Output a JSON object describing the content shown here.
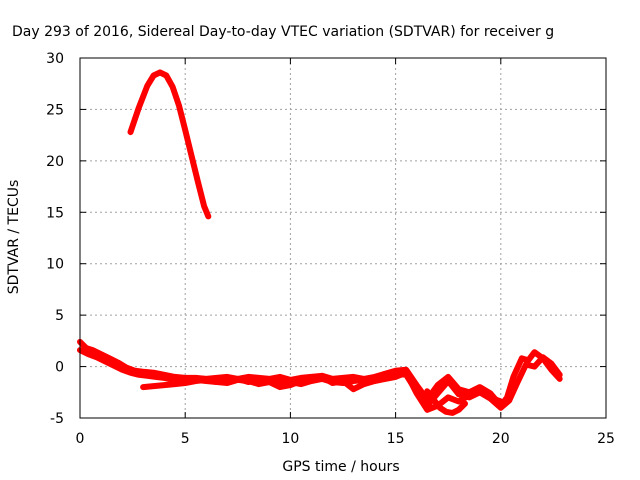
{
  "chart_data": {
    "type": "line",
    "title": "Day 293 of 2016, Sidereal Day-to-day VTEC variation (SDTVAR) for receiver g",
    "xlabel": "GPS time / hours",
    "ylabel": "SDTVAR / TECUs",
    "xlim": [
      0,
      25
    ],
    "ylim": [
      -5,
      30
    ],
    "xticks": [
      0,
      5,
      10,
      15,
      20,
      25
    ],
    "yticks": [
      -5,
      0,
      5,
      10,
      15,
      20,
      25,
      30
    ],
    "grid": true,
    "series_color": "#ff0000",
    "series": [
      {
        "x": [
          2.4,
          2.8,
          3.2,
          3.5,
          3.8,
          4.1,
          4.4,
          4.7,
          5.0,
          5.3,
          5.6,
          5.9,
          6.1
        ],
        "y": [
          22.8,
          25.2,
          27.3,
          28.3,
          28.6,
          28.3,
          27.2,
          25.4,
          23.0,
          20.5,
          18.0,
          15.6,
          14.6
        ]
      },
      {
        "x": [
          0.0,
          0.3,
          0.6,
          1.0,
          1.4,
          1.8,
          2.2,
          2.6,
          3.0,
          3.5,
          4.0,
          4.5,
          5.0,
          5.5,
          6.0,
          6.5,
          7.0,
          7.5,
          8.0,
          8.5,
          9.0,
          9.5,
          10.0,
          10.5,
          11.0,
          11.5,
          12.0,
          12.5,
          13.0,
          13.5,
          14.0,
          14.5,
          15.0,
          15.5,
          16.0,
          16.5,
          17.0,
          17.5,
          18.0,
          18.5,
          19.0,
          19.5,
          20.0,
          20.3,
          20.6,
          21.0,
          21.3,
          21.6,
          22.0,
          22.4,
          22.8
        ],
        "y": [
          2.4,
          1.8,
          1.6,
          1.2,
          0.8,
          0.4,
          -0.1,
          -0.4,
          -0.5,
          -0.6,
          -0.8,
          -1.0,
          -1.1,
          -1.1,
          -1.2,
          -1.1,
          -1.0,
          -1.2,
          -1.0,
          -1.1,
          -1.2,
          -1.0,
          -1.3,
          -1.1,
          -1.0,
          -0.9,
          -1.2,
          -1.1,
          -1.0,
          -1.2,
          -1.0,
          -0.7,
          -0.4,
          -0.3,
          -1.8,
          -3.2,
          -1.8,
          -1.0,
          -2.2,
          -2.5,
          -2.0,
          -2.6,
          -3.8,
          -3.0,
          -1.0,
          0.8,
          0.6,
          1.4,
          0.8,
          -0.3,
          -1.2
        ]
      },
      {
        "x": [
          0.0,
          0.4,
          0.8,
          1.2,
          1.6,
          2.0,
          2.4,
          2.8,
          3.2,
          3.6,
          4.0,
          4.5,
          5.0,
          5.5,
          6.0,
          6.5,
          7.0,
          7.5,
          8.0,
          8.5,
          9.0,
          9.5,
          10.0,
          10.5,
          11.0,
          11.5,
          12.0,
          12.5,
          13.0,
          13.5,
          14.0,
          14.5,
          15.0,
          15.5,
          16.0,
          16.5,
          17.0,
          17.5,
          18.0,
          18.5,
          19.0,
          19.5,
          20.0,
          20.4,
          20.8,
          21.2,
          21.6,
          22.0,
          22.4,
          22.8
        ],
        "y": [
          1.6,
          1.2,
          0.9,
          0.5,
          0.1,
          -0.3,
          -0.6,
          -0.8,
          -0.9,
          -1.0,
          -1.1,
          -1.3,
          -1.4,
          -1.3,
          -1.4,
          -1.5,
          -1.3,
          -1.2,
          -1.5,
          -1.3,
          -1.4,
          -1.6,
          -1.5,
          -1.7,
          -1.4,
          -1.2,
          -1.5,
          -1.6,
          -1.4,
          -1.3,
          -1.1,
          -0.9,
          -0.7,
          -0.8,
          -2.4,
          -3.8,
          -2.6,
          -1.4,
          -2.7,
          -3.0,
          -2.5,
          -3.1,
          -4.0,
          -3.3,
          -1.5,
          0.2,
          0.0,
          0.9,
          0.3,
          -0.8
        ]
      },
      {
        "x": [
          3.0,
          3.5,
          4.0,
          4.5,
          5.0,
          5.5,
          6.0,
          6.5,
          7.0,
          7.5,
          8.0,
          8.5,
          9.0,
          9.5,
          10.0,
          10.5,
          11.0,
          11.5,
          12.0,
          12.5,
          13.0,
          13.5,
          14.0,
          14.5,
          15.0,
          15.5,
          16.0,
          16.5,
          17.0,
          17.5,
          18.0,
          18.5,
          19.0,
          19.5,
          20.0
        ],
        "y": [
          -2.0,
          -1.9,
          -1.8,
          -1.7,
          -1.6,
          -1.4,
          -1.3,
          -1.5,
          -1.6,
          -1.3,
          -1.4,
          -1.7,
          -1.5,
          -2.0,
          -1.8,
          -1.4,
          -1.2,
          -1.0,
          -1.6,
          -1.4,
          -2.2,
          -1.7,
          -1.4,
          -1.2,
          -1.0,
          -0.6,
          -2.6,
          -4.2,
          -3.8,
          -3.0,
          -3.4,
          -2.8,
          -2.4,
          -3.0,
          -3.4
        ]
      },
      {
        "x": [
          16.5,
          16.8,
          17.1,
          17.4,
          17.7,
          18.0,
          18.3
        ],
        "y": [
          -2.4,
          -3.2,
          -4.0,
          -4.4,
          -4.5,
          -4.2,
          -3.6
        ]
      }
    ]
  }
}
